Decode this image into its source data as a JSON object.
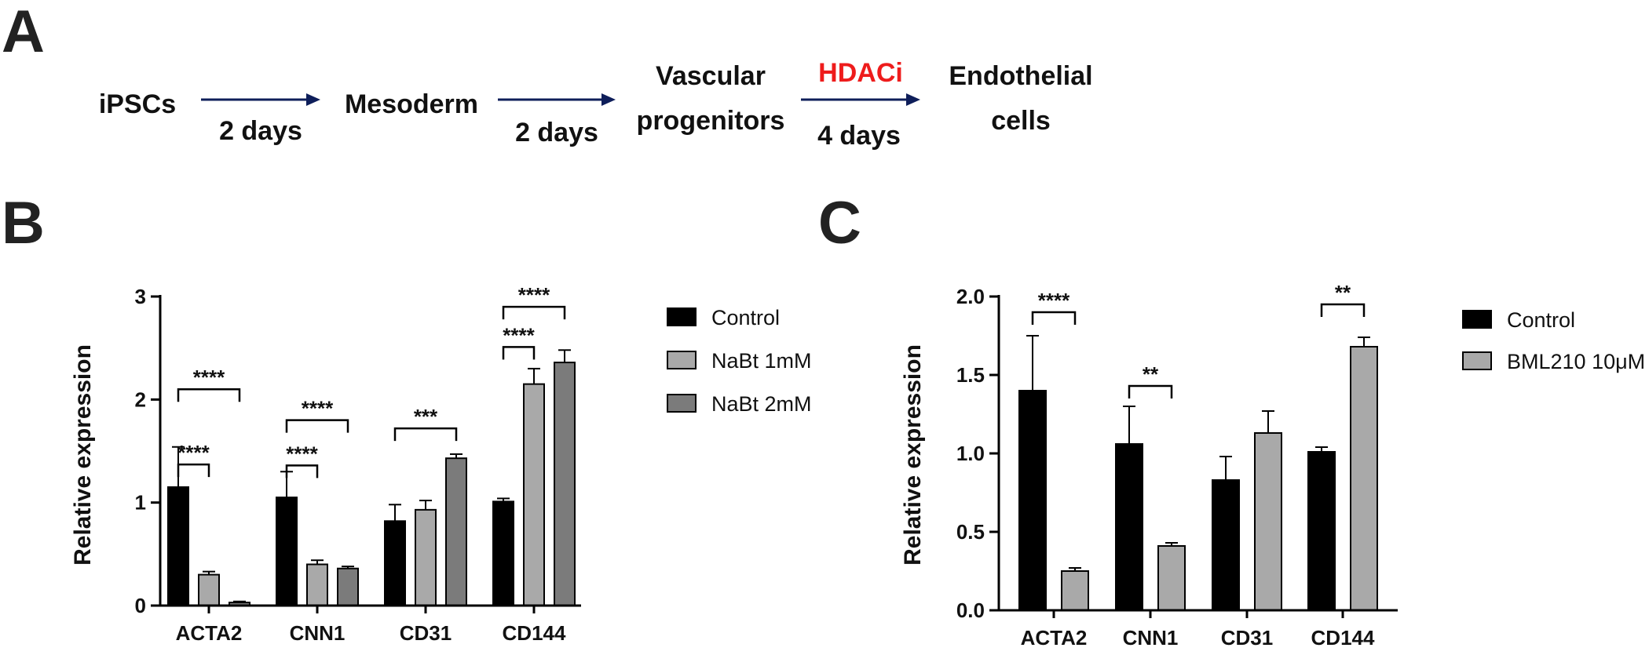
{
  "panel_letters": {
    "a": "A",
    "b": "B",
    "c": "C"
  },
  "workflow": {
    "stages": [
      {
        "lines": [
          "iPSCs"
        ]
      },
      {
        "lines": [
          "Mesoderm"
        ]
      },
      {
        "lines": [
          "Vascular",
          "progenitors"
        ]
      },
      {
        "lines": [
          "Endothelial",
          "cells"
        ]
      }
    ],
    "steps": [
      {
        "duration": "2 days",
        "treatment": ""
      },
      {
        "duration": "2 days",
        "treatment": ""
      },
      {
        "duration": "4 days",
        "treatment": "HDACi"
      }
    ]
  },
  "colors": {
    "text": "#111111",
    "arrow": "#0e1e5a",
    "treatment": "#ee1c1c",
    "series_dark": "#000000",
    "series_light": "#a9a9a9",
    "series_mid": "#7b7b7b"
  },
  "chart_data": [
    {
      "type": "bar",
      "panel": "B",
      "title": "",
      "xlabel": "",
      "ylabel": "Relative expression",
      "ylim": [
        0,
        3
      ],
      "yticks": [
        0,
        1,
        2,
        3
      ],
      "ytick_labels": [
        "0",
        "1",
        "2",
        "3"
      ],
      "categories": [
        "ACTA2",
        "CNN1",
        "CD31",
        "CD144"
      ],
      "legend_position": "right",
      "series": [
        {
          "name": "Control",
          "color": "#000000",
          "values": [
            1.15,
            1.05,
            0.82,
            1.01
          ],
          "errors": [
            0.39,
            0.25,
            0.16,
            0.03
          ]
        },
        {
          "name": "NaBt 1mM",
          "color": "#a9a9a9",
          "values": [
            0.3,
            0.4,
            0.93,
            2.15
          ],
          "errors": [
            0.03,
            0.04,
            0.09,
            0.15
          ]
        },
        {
          "name": "NaBt 2mM",
          "color": "#7b7b7b",
          "values": [
            0.03,
            0.36,
            1.43,
            2.36
          ],
          "errors": [
            0.01,
            0.02,
            0.04,
            0.12
          ]
        }
      ],
      "annotations": [
        {
          "category": 0,
          "from": 0,
          "to": 1,
          "level": 1.37,
          "label": "****"
        },
        {
          "category": 0,
          "from": 0,
          "to": 2,
          "level": 2.1,
          "label": "****"
        },
        {
          "category": 1,
          "from": 0,
          "to": 1,
          "level": 1.36,
          "label": "****"
        },
        {
          "category": 1,
          "from": 0,
          "to": 2,
          "level": 1.8,
          "label": "****"
        },
        {
          "category": 2,
          "from": 0,
          "to": 2,
          "level": 1.72,
          "label": "***"
        },
        {
          "category": 3,
          "from": 0,
          "to": 1,
          "level": 2.51,
          "label": "****"
        },
        {
          "category": 3,
          "from": 0,
          "to": 2,
          "level": 2.9,
          "label": "****"
        }
      ]
    },
    {
      "type": "bar",
      "panel": "C",
      "title": "",
      "xlabel": "",
      "ylabel": "Relative expression",
      "ylim": [
        0,
        2
      ],
      "yticks": [
        0,
        0.5,
        1,
        1.5,
        2
      ],
      "ytick_labels": [
        "0.0",
        "0.5",
        "1.0",
        "1.5",
        "2.0"
      ],
      "categories": [
        "ACTA2",
        "CNN1",
        "CD31",
        "CD144"
      ],
      "legend_position": "right",
      "series": [
        {
          "name": "Control",
          "color": "#000000",
          "values": [
            1.4,
            1.06,
            0.83,
            1.01
          ],
          "errors": [
            0.35,
            0.24,
            0.15,
            0.03
          ]
        },
        {
          "name": "BML210  10μM",
          "color": "#a9a9a9",
          "values": [
            0.25,
            0.41,
            1.13,
            1.68
          ],
          "errors": [
            0.02,
            0.02,
            0.14,
            0.06
          ]
        }
      ],
      "annotations": [
        {
          "category": 0,
          "from": 0,
          "to": 1,
          "level": 1.9,
          "label": "****"
        },
        {
          "category": 1,
          "from": 0,
          "to": 1,
          "level": 1.43,
          "label": "**"
        },
        {
          "category": 3,
          "from": 0,
          "to": 1,
          "level": 1.95,
          "label": "**"
        }
      ]
    }
  ]
}
